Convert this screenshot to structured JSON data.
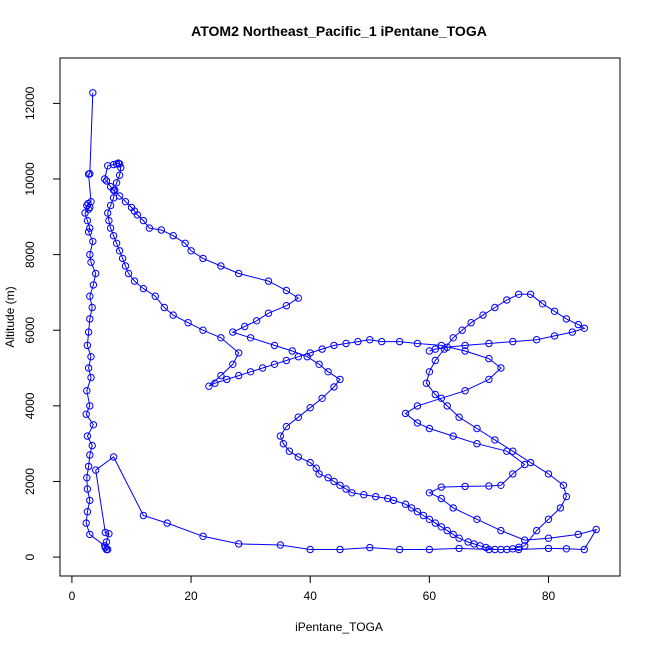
{
  "chart_data": {
    "type": "line",
    "title": "ATOM2 Northeast_Pacific_1 iPentane_TOGA",
    "xlabel": "iPentane_TOGA",
    "ylabel": "Altitude (m)",
    "xlim": [
      -2,
      92
    ],
    "ylim": [
      -500,
      13200
    ],
    "xticks": [
      "0",
      "20",
      "40",
      "60",
      "80"
    ],
    "xtick_values": [
      0,
      20,
      40,
      60,
      80
    ],
    "yticks": [
      "0",
      "2000",
      "4000",
      "6000",
      "8000",
      "10000",
      "12000"
    ],
    "ytick_values": [
      0,
      2000,
      4000,
      6000,
      8000,
      10000,
      12000
    ],
    "grid": false,
    "legend": "none",
    "series_color": "#0000ff",
    "series": [
      {
        "x": [
          3.5,
          3.0,
          2.8,
          3.2,
          2.7,
          2.5,
          3.0,
          2.8,
          2.2,
          2.6,
          3.0,
          2.8,
          3.5,
          3.0,
          3.2,
          4.0,
          3.6,
          3.0,
          3.4,
          3.0,
          2.8,
          2.6,
          3.2,
          2.8,
          3.2,
          2.5,
          3.0,
          2.4,
          3.6,
          2.6,
          3.4,
          3.0,
          2.8,
          2.5,
          2.6,
          3.0,
          2.6,
          2.4,
          3.0,
          5.5,
          5.8,
          6.0,
          5.6,
          5.8,
          6.2,
          5.6,
          4.0,
          7.0,
          12.0,
          16.0,
          22.0,
          28.0,
          35.0,
          40.0,
          45.0,
          50.0,
          55.0,
          60.0,
          65.0,
          70.0,
          75.0,
          80.0,
          83.0,
          86.0,
          88.0,
          85.0,
          80.0,
          76.0,
          72.0,
          68.0,
          64.0,
          62.0,
          60.0,
          62.0,
          66.0,
          70.0,
          72.0,
          74.0,
          76.0,
          73.0,
          68.0,
          64.0,
          60.0,
          58.0,
          56.0,
          58.0,
          62.0,
          66.0,
          70.0,
          72.0,
          70.0,
          66.0,
          62.0,
          58.0,
          55.0,
          52.0,
          50.0,
          48.0,
          46.0,
          44.0,
          42.0,
          40.0,
          38.0,
          36.0,
          34.0,
          32.0,
          30.0,
          28.0,
          26.0,
          24.0,
          23.0,
          25.0,
          27.0,
          28.0,
          25.0,
          22.0,
          19.5,
          17.0,
          15.5,
          14.0,
          12.0,
          10.5,
          9.5,
          9.0,
          8.5,
          8.0,
          7.5,
          7.0,
          6.5,
          6.2,
          6.0,
          6.5,
          7.0,
          7.2,
          7.5,
          8.0,
          8.2,
          8.0,
          7.8,
          7.5,
          7.0,
          6.0,
          5.5,
          5.8,
          6.5,
          7.0,
          8.0,
          9.0,
          10.0,
          10.5,
          11.0,
          12.0,
          13.0,
          15.0,
          17.0,
          19.0,
          20.0,
          22.0,
          25.0,
          28.0,
          33.0,
          36.0,
          38.0,
          36.0,
          33.0,
          31.0,
          29.0,
          27.0,
          30.0,
          34.0,
          37.0,
          39.5,
          41.5,
          43.0,
          45.0,
          44.0,
          42.0,
          40.0,
          38.0,
          36.0,
          35.0,
          35.5,
          36.5,
          38.0,
          40.0,
          41.0,
          41.5,
          43.0,
          44.0,
          45.0,
          46.0,
          47.0,
          49.0,
          51.0,
          53.0,
          54.0,
          56.0,
          57.0,
          58.0,
          59.0,
          60.0,
          61.0,
          62.0,
          63.0,
          64.0,
          65.0,
          66.5,
          67.5,
          68.5,
          69.5,
          71.0,
          72.0,
          73.0,
          74.0,
          75.0,
          76.0,
          78.0,
          80.0,
          82.0,
          83.0,
          82.5,
          80.0,
          77.0,
          74.0,
          71.0,
          68.0,
          65.0,
          63.0,
          61.0,
          59.5,
          60.0,
          61.0,
          62.5,
          64.0,
          65.5,
          67.0,
          69.0,
          71.0,
          73.0,
          75.0,
          77.0,
          79.0,
          81.0,
          83.0,
          85.0,
          86.0,
          84.0,
          81.0,
          78.0,
          74.0,
          70.0,
          66.0,
          63.0,
          61.0,
          60.0
        ],
        "y": [
          12280,
          10140,
          10130,
          9400,
          9350,
          9300,
          9250,
          9200,
          9100,
          8900,
          8700,
          8600,
          8350,
          8000,
          7800,
          7500,
          7200,
          6900,
          6600,
          6300,
          5950,
          5600,
          5300,
          5000,
          4750,
          4400,
          4000,
          3780,
          3500,
          3200,
          2950,
          2700,
          2400,
          2100,
          1800,
          1500,
          1200,
          900,
          600,
          300,
          200,
          200,
          250,
          400,
          620,
          650,
          2300,
          2650,
          1100,
          900,
          550,
          350,
          320,
          200,
          200,
          250,
          200,
          200,
          230,
          200,
          200,
          230,
          220,
          200,
          730,
          600,
          500,
          450,
          700,
          1000,
          1300,
          1550,
          1700,
          1850,
          1870,
          1880,
          1900,
          2200,
          2450,
          2800,
          3000,
          3200,
          3400,
          3550,
          3800,
          4000,
          4200,
          4400,
          4700,
          5000,
          5250,
          5450,
          5600,
          5650,
          5700,
          5700,
          5750,
          5700,
          5650,
          5600,
          5500,
          5400,
          5300,
          5200,
          5100,
          5000,
          4900,
          4800,
          4700,
          4600,
          4520,
          4800,
          5100,
          5400,
          5800,
          6000,
          6200,
          6400,
          6600,
          6900,
          7100,
          7300,
          7500,
          7700,
          7900,
          8100,
          8300,
          8500,
          8700,
          8900,
          9100,
          9300,
          9500,
          9700,
          9900,
          10100,
          10300,
          10400,
          10420,
          10400,
          10380,
          10350,
          10000,
          9950,
          9800,
          9700,
          9550,
          9400,
          9250,
          9150,
          9050,
          8900,
          8700,
          8650,
          8500,
          8300,
          8100,
          7900,
          7700,
          7500,
          7300,
          7050,
          6850,
          6650,
          6450,
          6250,
          6100,
          5950,
          5800,
          5600,
          5450,
          5300,
          5100,
          4900,
          4700,
          4500,
          4200,
          3950,
          3700,
          3450,
          3200,
          3000,
          2800,
          2650,
          2500,
          2350,
          2200,
          2100,
          2000,
          1900,
          1800,
          1700,
          1650,
          1600,
          1550,
          1500,
          1400,
          1300,
          1200,
          1100,
          1000,
          900,
          800,
          700,
          600,
          500,
          400,
          350,
          300,
          250,
          200,
          200,
          200,
          220,
          260,
          300,
          700,
          1000,
          1300,
          1600,
          1900,
          2200,
          2500,
          2800,
          3100,
          3400,
          3700,
          4000,
          4300,
          4600,
          4900,
          5200,
          5500,
          5800,
          6000,
          6200,
          6400,
          6600,
          6800,
          6950,
          6950,
          6700,
          6500,
          6300,
          6150,
          6050,
          5950,
          5850,
          5750,
          5700,
          5650,
          5600,
          5550,
          5500,
          5450
        ]
      }
    ]
  }
}
